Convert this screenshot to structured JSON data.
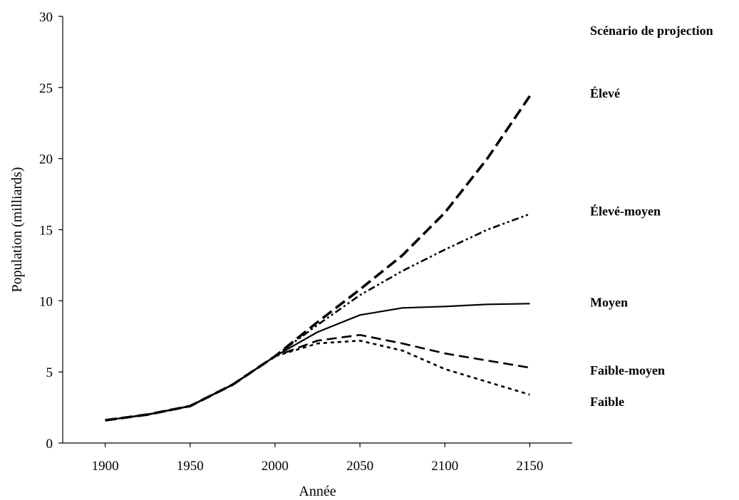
{
  "chart_data": {
    "type": "line",
    "title": "",
    "xlabel": "Année",
    "ylabel": "Population (milliards)",
    "xlim": [
      1875,
      2175
    ],
    "ylim": [
      0,
      30
    ],
    "x_ticks": [
      1900,
      1950,
      2000,
      2050,
      2100,
      2150
    ],
    "y_ticks": [
      0,
      5,
      10,
      15,
      20,
      25,
      30
    ],
    "grid": false,
    "legend_title": "Scénario de projection",
    "legend_placement": "right, labels placed next to each line end",
    "series": [
      {
        "name": "Élevé",
        "style": "long-dash thick",
        "label_y": 24.6,
        "points": [
          [
            1900,
            1.6
          ],
          [
            1925,
            2.0
          ],
          [
            1950,
            2.6
          ],
          [
            1975,
            4.1
          ],
          [
            2000,
            6.1
          ],
          [
            2025,
            8.5
          ],
          [
            2050,
            10.8
          ],
          [
            2075,
            13.2
          ],
          [
            2100,
            16.2
          ],
          [
            2125,
            20.0
          ],
          [
            2150,
            24.4
          ]
        ]
      },
      {
        "name": "Élevé-moyen",
        "style": "dash-dot-dot",
        "label_y": 16.3,
        "points": [
          [
            1900,
            1.6
          ],
          [
            1925,
            2.0
          ],
          [
            1950,
            2.6
          ],
          [
            1975,
            4.1
          ],
          [
            2000,
            6.1
          ],
          [
            2025,
            8.3
          ],
          [
            2050,
            10.4
          ],
          [
            2075,
            12.1
          ],
          [
            2100,
            13.6
          ],
          [
            2125,
            15.0
          ],
          [
            2150,
            16.1
          ]
        ]
      },
      {
        "name": "Moyen",
        "style": "solid",
        "label_y": 9.9,
        "points": [
          [
            1900,
            1.6
          ],
          [
            1925,
            2.0
          ],
          [
            1950,
            2.6
          ],
          [
            1975,
            4.1
          ],
          [
            2000,
            6.1
          ],
          [
            2025,
            7.8
          ],
          [
            2050,
            9.0
          ],
          [
            2075,
            9.5
          ],
          [
            2100,
            9.6
          ],
          [
            2125,
            9.75
          ],
          [
            2150,
            9.8
          ]
        ]
      },
      {
        "name": "Faible-moyen",
        "style": "long-dash",
        "label_y": 5.1,
        "points": [
          [
            1900,
            1.6
          ],
          [
            1925,
            2.0
          ],
          [
            1950,
            2.6
          ],
          [
            1975,
            4.1
          ],
          [
            2000,
            6.1
          ],
          [
            2025,
            7.2
          ],
          [
            2050,
            7.6
          ],
          [
            2075,
            7.0
          ],
          [
            2100,
            6.3
          ],
          [
            2125,
            5.8
          ],
          [
            2150,
            5.3
          ]
        ]
      },
      {
        "name": "Faible",
        "style": "short-dash",
        "label_y": 2.9,
        "points": [
          [
            1900,
            1.6
          ],
          [
            1925,
            2.0
          ],
          [
            1950,
            2.6
          ],
          [
            1975,
            4.1
          ],
          [
            2000,
            6.1
          ],
          [
            2025,
            7.0
          ],
          [
            2050,
            7.2
          ],
          [
            2075,
            6.5
          ],
          [
            2100,
            5.2
          ],
          [
            2125,
            4.3
          ],
          [
            2150,
            3.4
          ]
        ]
      }
    ]
  },
  "colors": {
    "line": "#000000",
    "axis": "#000000",
    "background": "#ffffff"
  }
}
